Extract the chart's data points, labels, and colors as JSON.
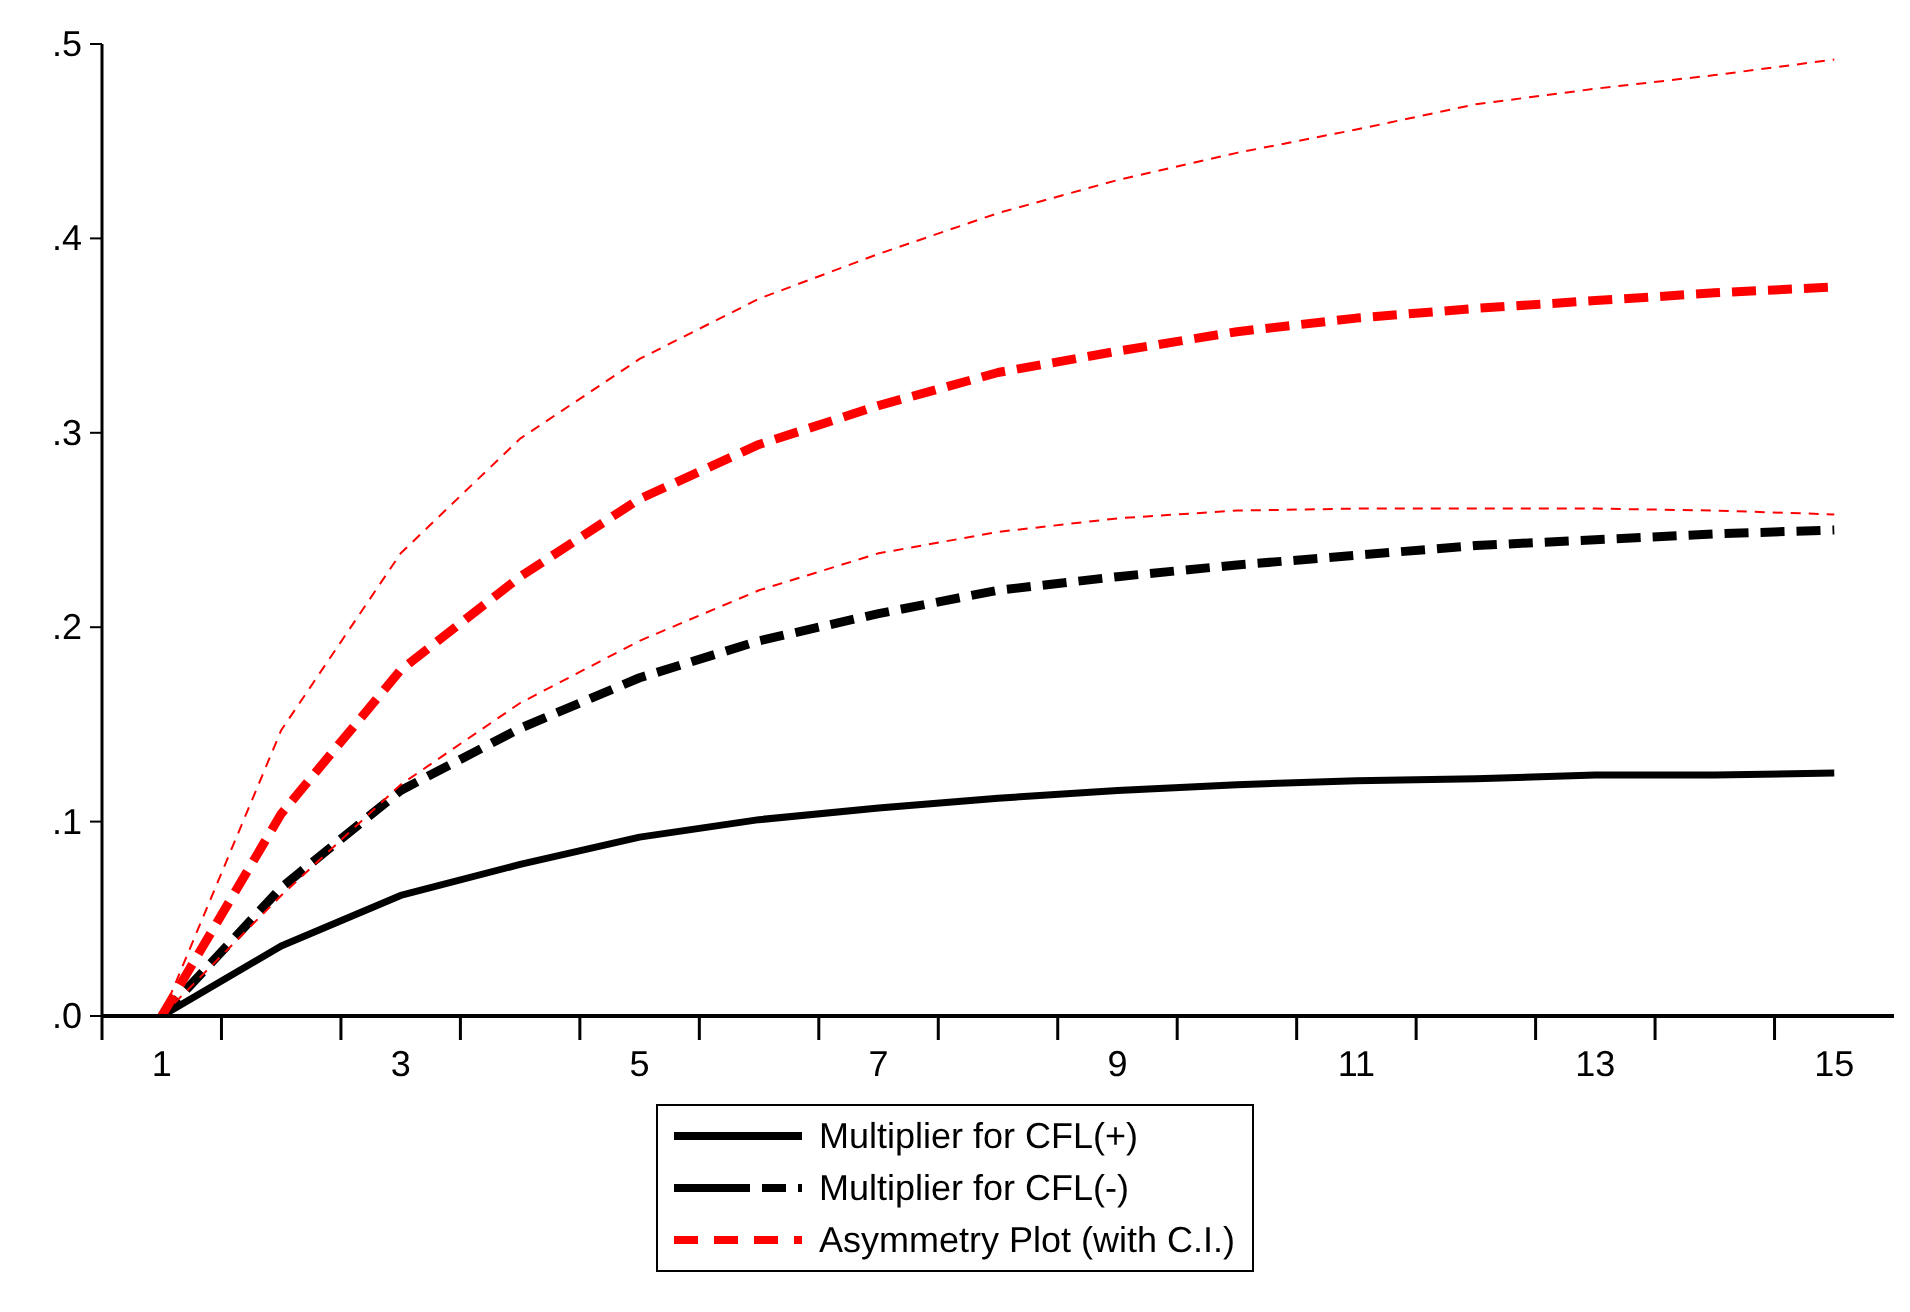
{
  "chart_data": {
    "type": "line",
    "x": [
      1,
      2,
      3,
      4,
      5,
      6,
      7,
      8,
      9,
      10,
      11,
      12,
      13,
      14,
      15
    ],
    "series": [
      {
        "name": "Multiplier for CFL(+)",
        "color": "#000000",
        "line_style": "solid",
        "values": [
          0,
          0.036,
          0.062,
          0.078,
          0.092,
          0.101,
          0.107,
          0.112,
          0.116,
          0.119,
          0.121,
          0.122,
          0.124,
          0.124,
          0.125
        ]
      },
      {
        "name": "Multiplier for CFL(-)",
        "color": "#000000",
        "line_style": "dashed",
        "values": [
          0,
          0.066,
          0.116,
          0.148,
          0.174,
          0.193,
          0.207,
          0.219,
          0.226,
          0.232,
          0.237,
          0.242,
          0.245,
          0.248,
          0.25
        ]
      },
      {
        "name": "Asymmetry Plot (with C.I.)",
        "color": "#ff0000",
        "line_style": "dashed",
        "values": [
          0,
          0.104,
          0.178,
          0.226,
          0.266,
          0.294,
          0.314,
          0.331,
          0.342,
          0.352,
          0.359,
          0.364,
          0.368,
          0.372,
          0.375
        ]
      },
      {
        "color": "#ff0000",
        "line_style": "dashed",
        "values": [
          0,
          0.147,
          0.238,
          0.297,
          0.338,
          0.369,
          0.392,
          0.413,
          0.43,
          0.444,
          0.456,
          0.469,
          0.477,
          0.484,
          0.492
        ]
      },
      {
        "color": "#ff0000",
        "line_style": "dashed",
        "values": [
          0,
          0.062,
          0.119,
          0.161,
          0.193,
          0.219,
          0.238,
          0.249,
          0.256,
          0.26,
          0.261,
          0.261,
          0.261,
          0.26,
          0.258
        ]
      }
    ],
    "xlim": [
      0.5,
      15.5
    ],
    "xticks": [
      1,
      3,
      5,
      7,
      9,
      11,
      13,
      15,
      {
        "value": 0.5,
        "label": null
      },
      {
        "value": 1.5,
        "label": null
      },
      {
        "value": 2.5,
        "label": null
      },
      {
        "value": 3.5,
        "label": null
      },
      {
        "value": 4.5,
        "label": null
      },
      {
        "value": 5.5,
        "label": null
      },
      {
        "value": 6.5,
        "label": null
      },
      {
        "value": 7.5,
        "label": null
      },
      {
        "value": 8.5,
        "label": null
      },
      {
        "value": 9.5,
        "label": null
      },
      {
        "value": 10.5,
        "label": null
      },
      {
        "value": 11.5,
        "label": null
      },
      {
        "value": 12.5,
        "label": null
      },
      {
        "value": 13.5,
        "label": null
      },
      {
        "value": 14.5,
        "label": null
      }
    ],
    "ylim": [
      0,
      0.5
    ],
    "yticks": [
      {
        "value": 0,
        "label": ".0"
      },
      {
        "value": 0.1,
        "label": ".1"
      },
      {
        "value": 0.2,
        "label": ".2"
      },
      {
        "value": 0.3,
        "label": ".3"
      },
      {
        "value": 0.4,
        "label": ".4"
      },
      {
        "value": 0.5,
        "label": ".5"
      }
    ],
    "grid": false,
    "legend": "bottom"
  }
}
